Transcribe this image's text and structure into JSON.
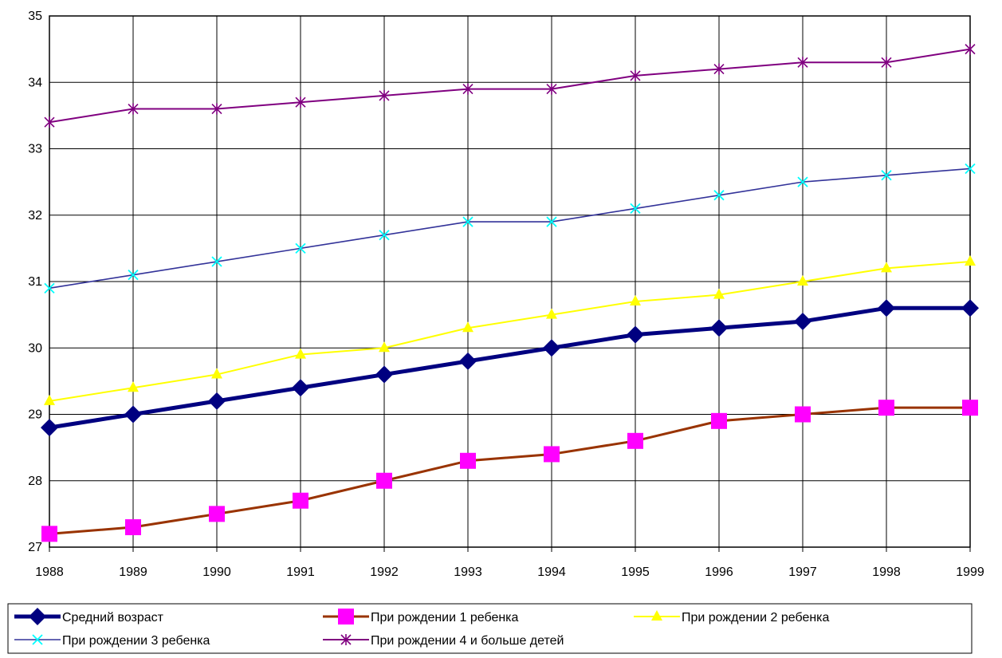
{
  "chart_data": {
    "type": "line",
    "x": [
      "1988",
      "1989",
      "1990",
      "1991",
      "1992",
      "1993",
      "1994",
      "1995",
      "1996",
      "1997",
      "1998",
      "1999"
    ],
    "ylim": [
      27,
      35
    ],
    "yticks": [
      "27",
      "28",
      "29",
      "30",
      "31",
      "32",
      "33",
      "34",
      "35"
    ],
    "grid": true,
    "legend_position": "bottom",
    "series": [
      {
        "name": "Средний возраст",
        "values": [
          28.8,
          29.0,
          29.2,
          29.4,
          29.6,
          29.8,
          30.0,
          30.2,
          30.3,
          30.4,
          30.6,
          30.6
        ],
        "line_color": "#000080",
        "marker_color": "#000080",
        "marker": "diamond"
      },
      {
        "name": "При рождении 1 ребенка",
        "values": [
          27.2,
          27.3,
          27.5,
          27.7,
          28.0,
          28.3,
          28.4,
          28.6,
          28.9,
          29.0,
          29.1,
          29.1
        ],
        "line_color": "#993300",
        "marker_color": "#FF00FF",
        "marker": "square"
      },
      {
        "name": "При рождении 2 ребенка",
        "values": [
          29.2,
          29.4,
          29.6,
          29.9,
          30.0,
          30.3,
          30.5,
          30.7,
          30.8,
          31.0,
          31.2,
          31.3
        ],
        "line_color": "#FFFF00",
        "marker_color": "#FFFF00",
        "marker": "triangle"
      },
      {
        "name": "При рождении 3 ребенка",
        "values": [
          30.9,
          31.1,
          31.3,
          31.5,
          31.7,
          31.9,
          31.9,
          32.1,
          32.3,
          32.5,
          32.6,
          32.7
        ],
        "line_color": "#333399",
        "marker_color": "#00FFFF",
        "marker": "x"
      },
      {
        "name": "При рождении 4 и больше детей",
        "values": [
          33.4,
          33.6,
          33.6,
          33.7,
          33.8,
          33.9,
          33.9,
          34.1,
          34.2,
          34.3,
          34.3,
          34.5
        ],
        "line_color": "#800080",
        "marker_color": "#800080",
        "marker": "star"
      }
    ]
  }
}
